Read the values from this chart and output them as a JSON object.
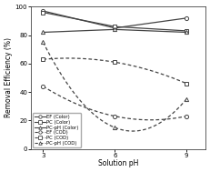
{
  "x": [
    3,
    6,
    9
  ],
  "EF_Color": [
    97,
    85,
    92
  ],
  "PC_Color": [
    96,
    86,
    83
  ],
  "PCpH_Color": [
    82,
    84,
    82
  ],
  "EF_COD": [
    44,
    23,
    23
  ],
  "PC_COD": [
    63,
    61,
    46
  ],
  "PCpH_COD": [
    75,
    15,
    35
  ],
  "xlabel": "Solution pH",
  "ylabel": "Removal Efficiency (%)",
  "ylim": [
    0,
    100
  ],
  "xlim": [
    2.5,
    9.8
  ],
  "xticks": [
    3,
    6,
    9
  ],
  "yticks": [
    0,
    20,
    40,
    60,
    80,
    100
  ],
  "legend_labels": [
    "EF (Color)",
    "PC (Color)",
    "PC-pH (Color)",
    "EF (COD)",
    "PC (COD)",
    "PC-pH (COD)"
  ],
  "line_color": "#444444",
  "figwidth": 2.31,
  "figheight": 1.89,
  "dpi": 100
}
